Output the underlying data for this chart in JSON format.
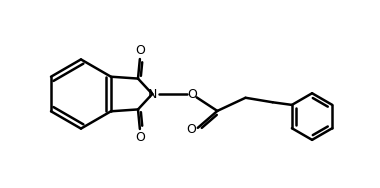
{
  "bg_color": "#ffffff",
  "line_color": "#000000",
  "line_width": 1.8,
  "figsize": [
    3.8,
    1.88
  ],
  "dpi": 100,
  "xlim": [
    0,
    10
  ],
  "ylim": [
    0,
    5
  ]
}
